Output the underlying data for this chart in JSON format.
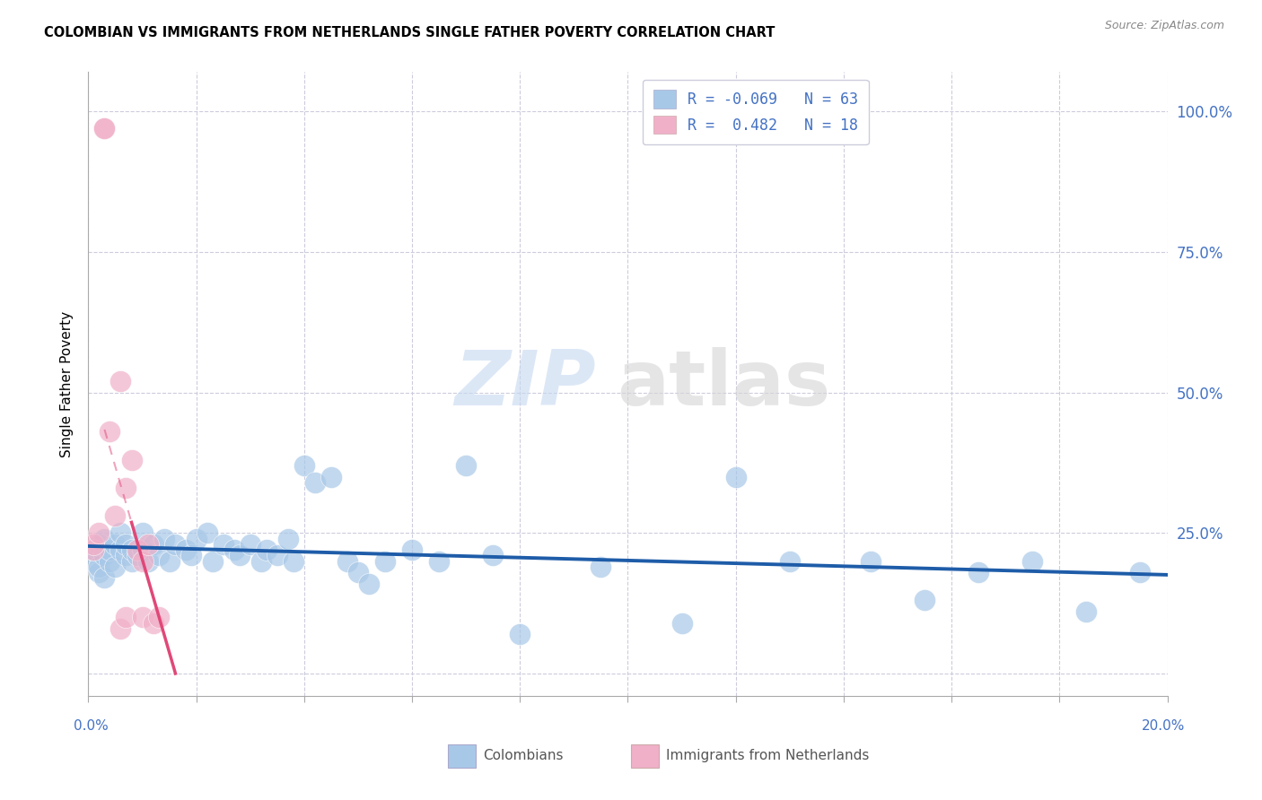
{
  "title": "COLOMBIAN VS IMMIGRANTS FROM NETHERLANDS SINGLE FATHER POVERTY CORRELATION CHART",
  "source": "Source: ZipAtlas.com",
  "ylabel": "Single Father Poverty",
  "blue_color": "#a8c8e8",
  "pink_color": "#f0b0c8",
  "trend_blue_color": "#1e5ca8",
  "trend_pink_color": "#e04878",
  "legend_line1": "R = -0.069   N = 63",
  "legend_line2": "R =  0.482   N = 18",
  "ytick_vals": [
    0.0,
    0.25,
    0.5,
    0.75,
    1.0
  ],
  "ytick_labels": [
    "",
    "25.0%",
    "50.0%",
    "75.0%",
    "100.0%"
  ],
  "xmin": 0.0,
  "xmax": 0.2,
  "ymin": -0.04,
  "ymax": 1.07,
  "blue_x": [
    0.001,
    0.001,
    0.002,
    0.002,
    0.002,
    0.003,
    0.003,
    0.003,
    0.004,
    0.004,
    0.005,
    0.005,
    0.006,
    0.006,
    0.007,
    0.007,
    0.008,
    0.008,
    0.009,
    0.01,
    0.01,
    0.011,
    0.012,
    0.013,
    0.014,
    0.015,
    0.016,
    0.018,
    0.019,
    0.02,
    0.022,
    0.023,
    0.025,
    0.027,
    0.028,
    0.03,
    0.032,
    0.033,
    0.035,
    0.037,
    0.038,
    0.04,
    0.042,
    0.045,
    0.048,
    0.05,
    0.052,
    0.055,
    0.06,
    0.065,
    0.07,
    0.075,
    0.08,
    0.095,
    0.11,
    0.12,
    0.13,
    0.145,
    0.155,
    0.165,
    0.175,
    0.185,
    0.195
  ],
  "blue_y": [
    0.2,
    0.22,
    0.18,
    0.19,
    0.23,
    0.21,
    0.17,
    0.24,
    0.2,
    0.22,
    0.19,
    0.23,
    0.22,
    0.25,
    0.21,
    0.23,
    0.2,
    0.22,
    0.21,
    0.22,
    0.25,
    0.2,
    0.23,
    0.21,
    0.24,
    0.2,
    0.23,
    0.22,
    0.21,
    0.24,
    0.25,
    0.2,
    0.23,
    0.22,
    0.21,
    0.23,
    0.2,
    0.22,
    0.21,
    0.24,
    0.2,
    0.37,
    0.34,
    0.35,
    0.2,
    0.18,
    0.16,
    0.2,
    0.22,
    0.2,
    0.37,
    0.21,
    0.07,
    0.19,
    0.09,
    0.35,
    0.2,
    0.2,
    0.13,
    0.18,
    0.2,
    0.11,
    0.18
  ],
  "pink_x": [
    0.001,
    0.001,
    0.002,
    0.003,
    0.003,
    0.004,
    0.005,
    0.006,
    0.006,
    0.007,
    0.007,
    0.008,
    0.009,
    0.01,
    0.01,
    0.011,
    0.012,
    0.013
  ],
  "pink_y": [
    0.22,
    0.23,
    0.25,
    0.97,
    0.97,
    0.43,
    0.28,
    0.52,
    0.08,
    0.33,
    0.1,
    0.38,
    0.22,
    0.2,
    0.1,
    0.23,
    0.09,
    0.1
  ],
  "pink_trend_xstart": -0.001,
  "pink_trend_xend": 0.013,
  "pink_trend_solid_ystart": 0.0,
  "pink_trend_solid_yend": 0.55
}
